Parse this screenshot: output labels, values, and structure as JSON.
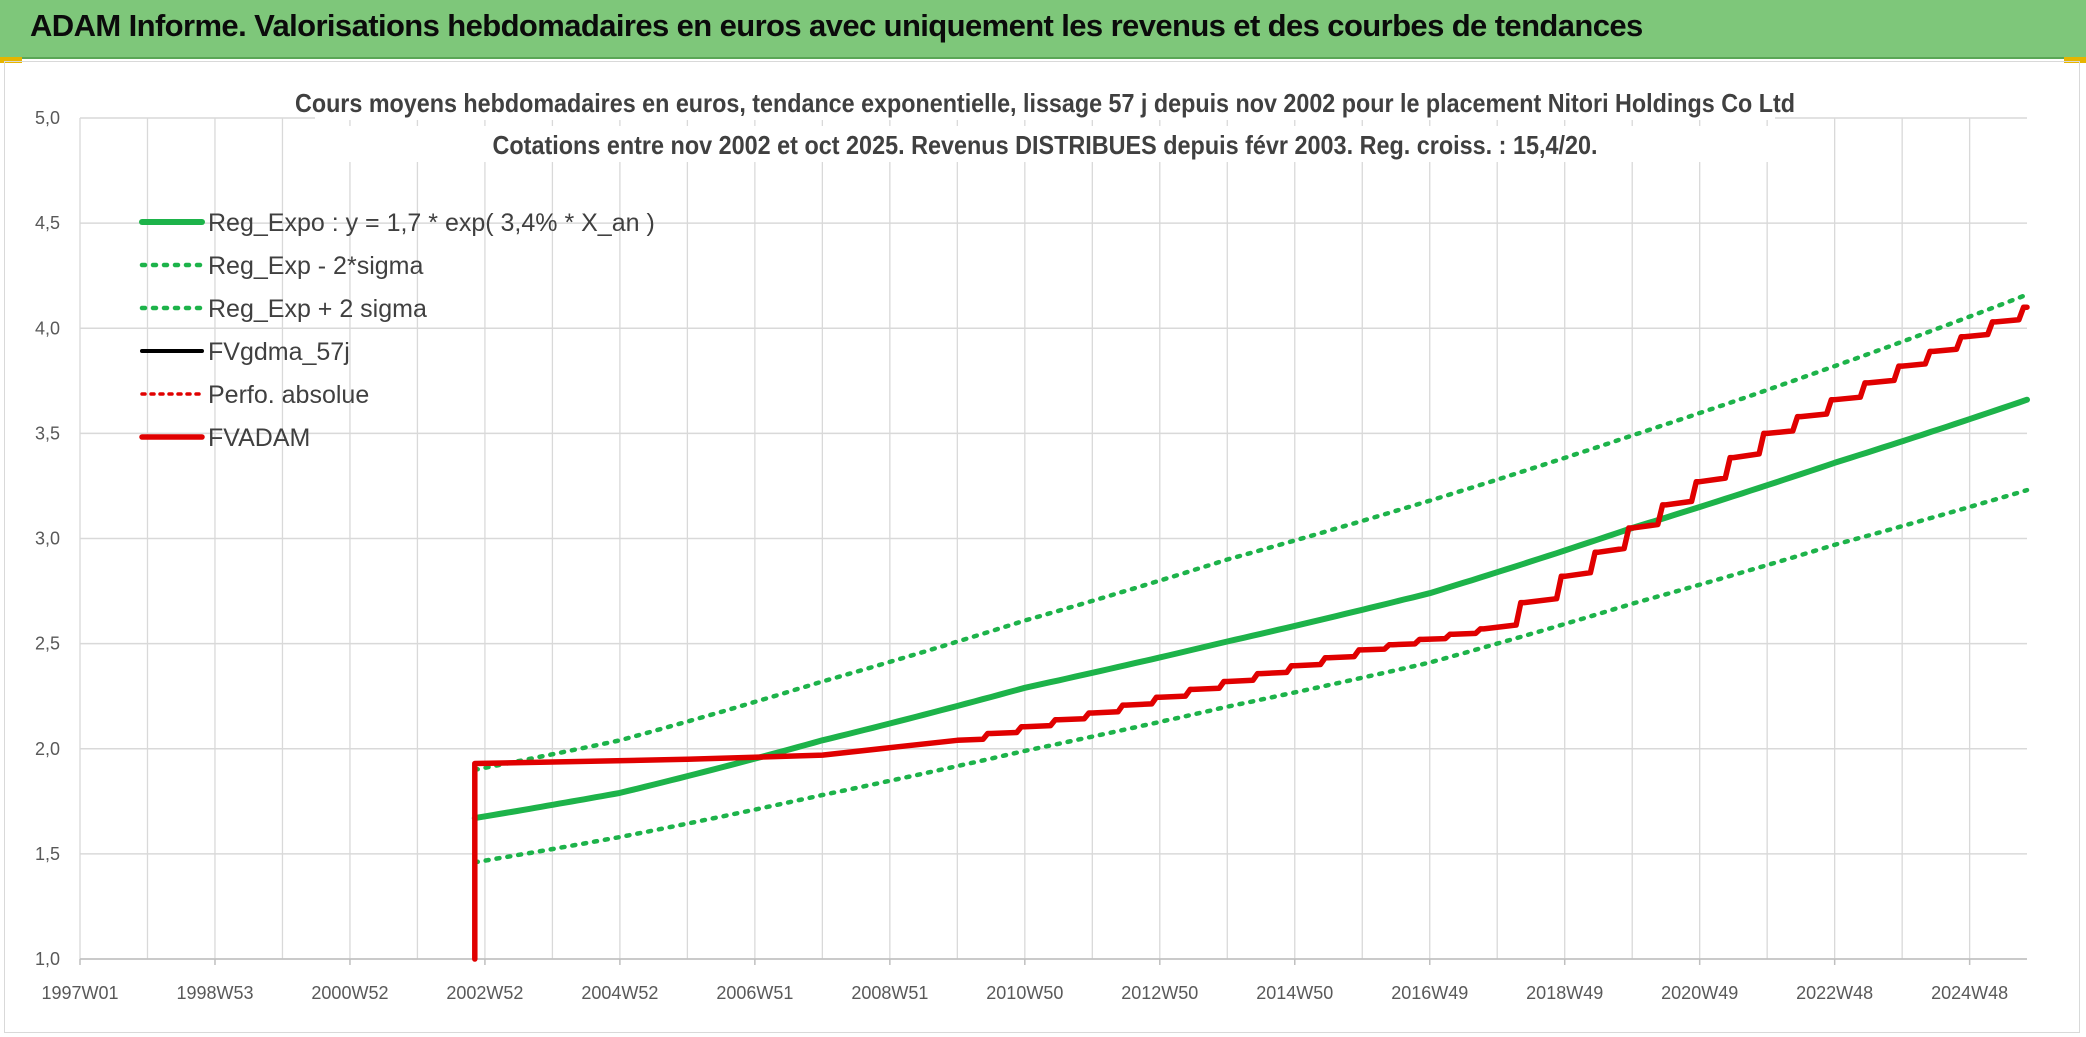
{
  "header": {
    "title": "ADAM Informe. Valorisations hebdomadaires en euros avec uniquement les revenus et des courbes de tendances"
  },
  "colors": {
    "banner": "#7ec77a",
    "green": "#1db34a",
    "red": "#e00000",
    "black": "#000000",
    "grid": "#d9d9d9"
  },
  "chart_data": {
    "type": "line",
    "title_lines": [
      "Cours moyens hebdomadaires en euros, tendance exponentielle, lissage 57 j depuis nov 2002 pour le placement Nitori Holdings Co Ltd",
      "Cotations entre nov 2002 et oct 2025. Revenus DISTRIBUES depuis févr 2003. Reg. croiss. : 15,4/20."
    ],
    "x_tick_labels": [
      "1997W01",
      "1998W53",
      "2000W52",
      "2002W52",
      "2004W52",
      "2006W51",
      "2008W51",
      "2010W50",
      "2012W50",
      "2014W50",
      "2016W49",
      "2018W49",
      "2020W49",
      "2022W48",
      "2024W48"
    ],
    "x_range_years": [
      1997.0,
      2025.85
    ],
    "y_tick_labels": [
      "1,0",
      "1,5",
      "2,0",
      "2,5",
      "3,0",
      "3,5",
      "4,0",
      "4,5",
      "5,0"
    ],
    "ylim": [
      1.0,
      5.0
    ],
    "grid": true,
    "legend_position": "top-left",
    "series": [
      {
        "name": "Reg_Expo : y = 1,7 * exp( 3,4% *  X_an )",
        "style": "solid-green",
        "x": [
          2002.85,
          2005.0,
          2008.0,
          2011.0,
          2014.0,
          2017.0,
          2020.0,
          2023.0,
          2025.85
        ],
        "y": [
          1.67,
          1.79,
          2.04,
          2.29,
          2.51,
          2.74,
          3.05,
          3.36,
          3.66
        ]
      },
      {
        "name": "Reg_Exp - 2*sigma",
        "style": "dotted-green",
        "x": [
          2002.85,
          2005.0,
          2008.0,
          2011.0,
          2014.0,
          2017.0,
          2020.0,
          2023.0,
          2025.85
        ],
        "y": [
          1.46,
          1.58,
          1.78,
          1.99,
          2.2,
          2.41,
          2.69,
          2.97,
          3.23
        ]
      },
      {
        "name": "Reg_Exp + 2 sigma",
        "style": "dotted-green",
        "x": [
          2002.85,
          2005.0,
          2008.0,
          2011.0,
          2014.0,
          2017.0,
          2020.0,
          2023.0,
          2025.85
        ],
        "y": [
          1.9,
          2.04,
          2.32,
          2.61,
          2.9,
          3.18,
          3.49,
          3.82,
          4.16
        ]
      },
      {
        "name": "FVgdma_57j",
        "style": "solid-black",
        "x": [
          2002.85,
          2006.0,
          2008.0,
          2010.0,
          2012.0,
          2014.0,
          2016.0,
          2017.8,
          2019.0,
          2020.0,
          2021.0,
          2022.0,
          2023.0,
          2024.0,
          2025.85
        ],
        "y": [
          1.93,
          1.95,
          1.97,
          2.04,
          2.17,
          2.32,
          2.47,
          2.57,
          2.82,
          3.05,
          3.27,
          3.5,
          3.66,
          3.82,
          4.1
        ]
      },
      {
        "name": "Perfo. absolue",
        "style": "dotted-red",
        "x": [],
        "y": []
      },
      {
        "name": "FVADAM",
        "style": "solid-red",
        "x": [
          2002.85,
          2002.85,
          2006.0,
          2008.0,
          2010.0,
          2012.0,
          2014.0,
          2016.0,
          2017.8,
          2019.0,
          2020.0,
          2021.0,
          2022.0,
          2023.0,
          2024.0,
          2025.85
        ],
        "y": [
          1.0,
          1.93,
          1.95,
          1.97,
          2.04,
          2.17,
          2.32,
          2.47,
          2.57,
          2.82,
          3.05,
          3.27,
          3.5,
          3.66,
          3.82,
          4.1
        ]
      }
    ]
  }
}
